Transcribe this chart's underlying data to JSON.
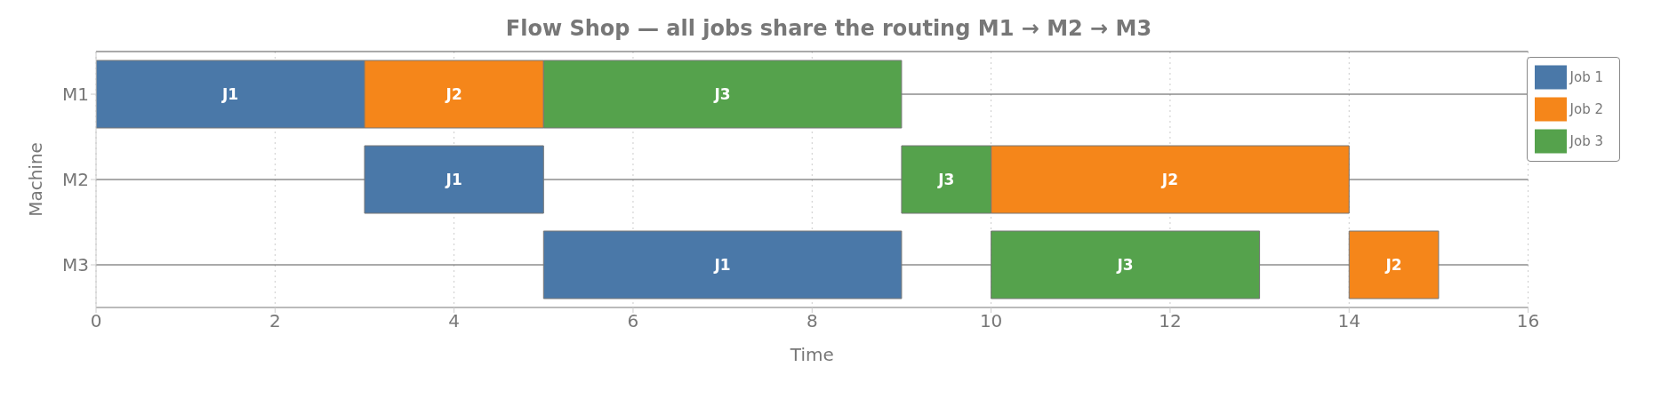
{
  "chart_data": {
    "type": "bar",
    "orientation": "horizontal",
    "title": "Flow Shop — all jobs share the routing M1 → M2 → M3",
    "xlabel": "Time",
    "ylabel": "Machine",
    "categories": [
      "M1",
      "M2",
      "M3"
    ],
    "xlim": [
      0,
      16
    ],
    "xticks": [
      0,
      2,
      4,
      6,
      8,
      10,
      12,
      14,
      16
    ],
    "grid": true,
    "legend": "top right",
    "series": [
      {
        "name": "Job 1",
        "color": "#4a78a8",
        "base": [
          0,
          3,
          5
        ],
        "values": [
          3,
          2,
          4
        ],
        "value_labels": [
          "J1",
          "J1",
          "J1"
        ]
      },
      {
        "name": "Job 2",
        "color": "#f5861a",
        "base": [
          3,
          10,
          14
        ],
        "values": [
          2,
          4,
          1
        ],
        "value_labels": [
          "J2",
          "J2",
          "J2"
        ]
      },
      {
        "name": "Job 3",
        "color": "#55a24c",
        "base": [
          5,
          9,
          10
        ],
        "values": [
          4,
          1,
          3
        ],
        "value_labels": [
          "J3",
          "J3",
          "J3"
        ]
      }
    ]
  }
}
